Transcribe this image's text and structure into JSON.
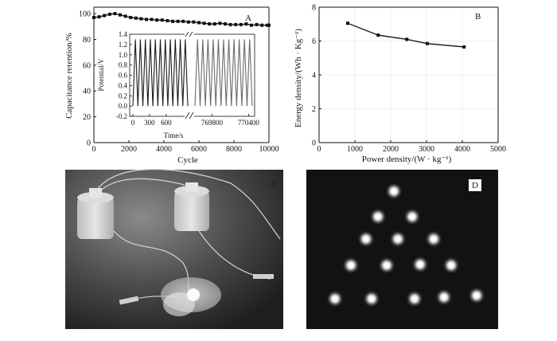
{
  "panels": {
    "A": {
      "letter": "A"
    },
    "B": {
      "letter": "B"
    },
    "C": {
      "letter": "C"
    },
    "D": {
      "letter": "D"
    }
  },
  "chart_data": [
    {
      "id": "A",
      "type": "line",
      "xlabel": "Cycle",
      "ylabel": "Capacitance retention/%",
      "xlim": [
        0,
        10000
      ],
      "ylim": [
        0,
        105
      ],
      "xticks": [
        0,
        2000,
        4000,
        6000,
        8000,
        10000
      ],
      "yticks": [
        0,
        20,
        40,
        60,
        80,
        100
      ],
      "series": [
        {
          "marker": "square",
          "x": [
            0,
            300,
            600,
            900,
            1200,
            1500,
            1800,
            2100,
            2400,
            2700,
            3000,
            3300,
            3600,
            3900,
            4200,
            4500,
            4800,
            5100,
            5400,
            5700,
            6000,
            6300,
            6600,
            6900,
            7200,
            7500,
            7800,
            8100,
            8400,
            8700,
            9000,
            9300,
            9600,
            9900,
            10000
          ],
          "y": [
            97,
            97.5,
            98.5,
            99.5,
            100,
            99,
            98,
            97,
            96.5,
            96,
            95.5,
            95.5,
            95,
            95,
            94.5,
            94,
            94,
            94,
            93.5,
            93.5,
            93,
            92.5,
            92,
            92,
            92.5,
            92,
            91.5,
            91.5,
            91.5,
            92,
            91,
            91.5,
            91,
            91,
            91
          ]
        }
      ],
      "inset": {
        "type": "line",
        "xlabel": "Time/s",
        "ylabel": "Potential/V",
        "ylim": [
          -0.2,
          1.4
        ],
        "yticks": [
          "-0.2",
          "0.0",
          "0.2",
          "0.4",
          "0.6",
          "0.8",
          "1.0",
          "1.2",
          "1.4"
        ],
        "segments": [
          {
            "xlim": [
              0,
              990
            ],
            "xticks": [
              "0",
              "300",
              "600"
            ],
            "color": "#1a1a1a",
            "cycles": 11,
            "vmin": 0,
            "vmax": 1.3
          },
          {
            "xlim": [
              769520,
              770460
            ],
            "xticks": [
              "769800",
              "770400"
            ],
            "color": "#6a6a6a",
            "cycles": 11,
            "vmin": 0,
            "vmax": 1.3
          }
        ]
      }
    },
    {
      "id": "B",
      "type": "line",
      "xlabel": "Power density/(W · kg⁻¹)",
      "ylabel": "Energy density/(Wh · Kg⁻¹)",
      "xlim": [
        0,
        5000
      ],
      "ylim": [
        0,
        8
      ],
      "xticks": [
        0,
        1000,
        2000,
        3000,
        4000,
        5000
      ],
      "yticks": [
        0,
        2,
        4,
        6,
        8
      ],
      "series": [
        {
          "marker": "square",
          "x": [
            800,
            1650,
            2450,
            3020,
            4050
          ],
          "y": [
            7.05,
            6.35,
            6.1,
            5.85,
            5.65
          ]
        }
      ]
    }
  ]
}
